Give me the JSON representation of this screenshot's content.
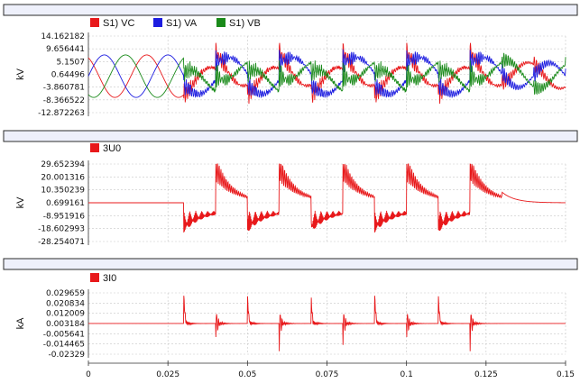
{
  "chart_data": [
    {
      "type": "line",
      "ylabel": "kV",
      "yticks": [
        "14.162182",
        "9.656441",
        "5.1507",
        "0.64496",
        "-3.860781",
        "-8.366522",
        "-12.872263"
      ],
      "ylim": [
        -12.872263,
        14.162182
      ],
      "xlim": [
        0,
        0.15
      ],
      "series": [
        {
          "name": "S1) VC",
          "color": "#e8191b"
        },
        {
          "name": "S1) VA",
          "color": "#1d1de0"
        },
        {
          "name": "S1) VB",
          "color": "#1a8a1a"
        }
      ]
    },
    {
      "type": "line",
      "ylabel": "kV",
      "yticks": [
        "29.652394",
        "20.001316",
        "10.350239",
        "0.699161",
        "-8.951916",
        "-18.602993",
        "-28.254071"
      ],
      "ylim": [
        -28.254071,
        29.652394
      ],
      "xlim": [
        0,
        0.15
      ],
      "series": [
        {
          "name": "3U0",
          "color": "#e8191b"
        }
      ]
    },
    {
      "type": "line",
      "ylabel": "kA",
      "yticks": [
        "0.029659",
        "0.020834",
        "0.012009",
        "0.003184",
        "-0.005641",
        "-0.014465",
        "-0.02329"
      ],
      "ylim": [
        -0.02329,
        0.029659
      ],
      "xlim": [
        0,
        0.15
      ],
      "series": [
        {
          "name": "3I0",
          "color": "#e8191b"
        }
      ]
    }
  ],
  "x_axis": {
    "ticks": [
      0,
      0.025,
      0.05,
      0.075,
      0.1,
      0.125,
      0.15
    ],
    "labels": [
      "0",
      "0.025",
      "0.05",
      "0.075",
      "0.1",
      "0.125",
      "0.15"
    ]
  }
}
